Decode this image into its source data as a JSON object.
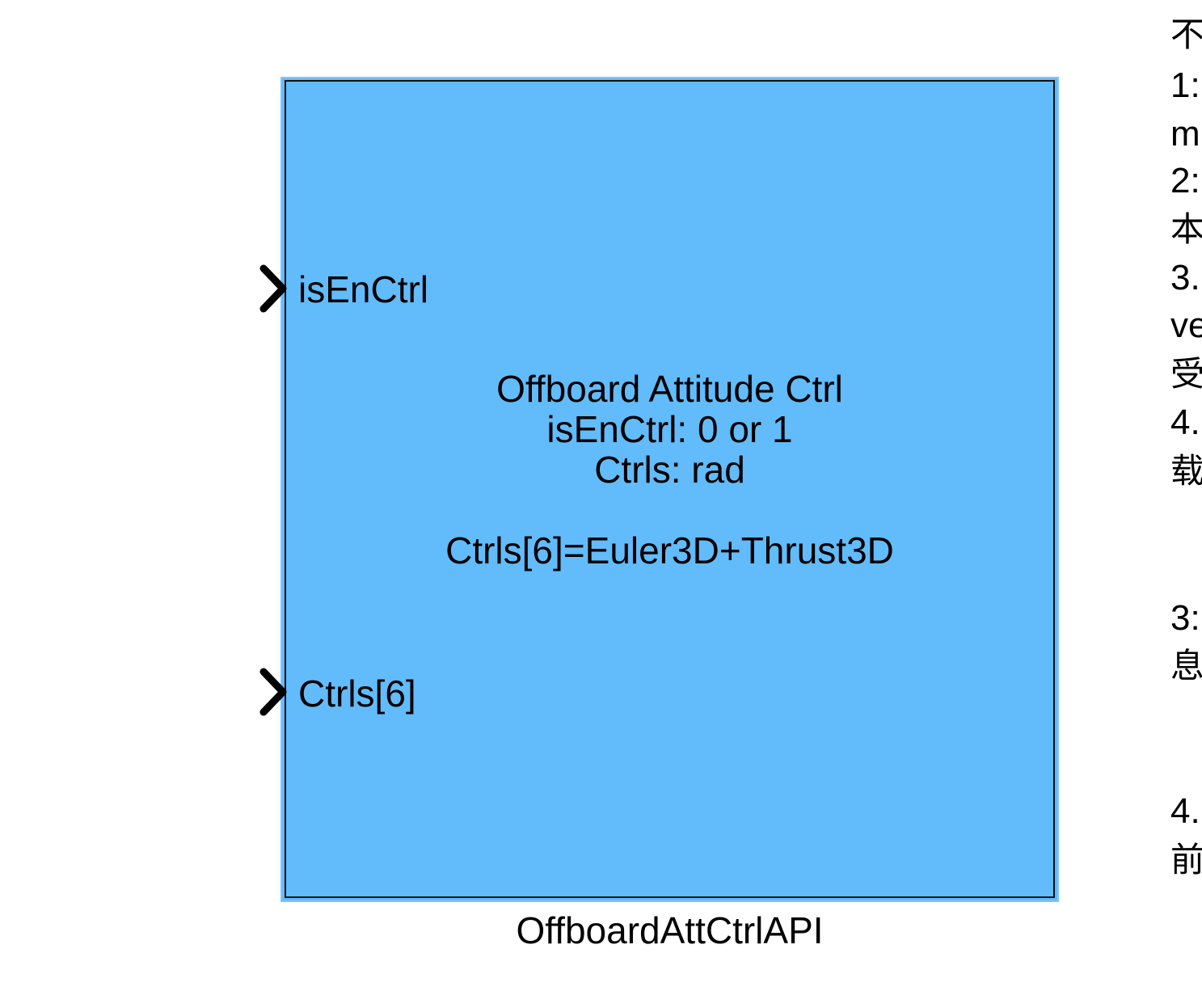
{
  "block": {
    "name": "OffboardAttCtrlAPI",
    "fill_color": "#62bbfb",
    "inputs": [
      {
        "label": "isEnCtrl"
      },
      {
        "label": "Ctrls[6]"
      }
    ],
    "mask_lines": [
      "Offboard Attitude Ctrl",
      "isEnCtrl: 0 or 1",
      "Ctrls: rad",
      "Ctrls[6]=Euler3D+Thrust3D"
    ]
  },
  "side_notes": [
    "不",
    "1:",
    "m",
    "2:",
    "本",
    "3.",
    "ve",
    "受",
    "4.",
    "载",
    "3:",
    "息",
    "4.",
    "前"
  ],
  "icons": {
    "input_port": "chevron-right-icon"
  }
}
